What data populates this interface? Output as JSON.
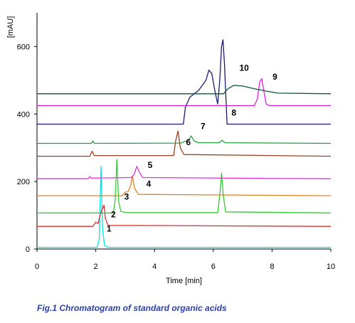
{
  "chart_data": {
    "type": "line",
    "xlabel": "Time [min]",
    "ylabel": "[mAU]",
    "xlim": [
      0,
      10
    ],
    "ylim": [
      0,
      700
    ],
    "xticks": [
      0,
      2,
      4,
      6,
      8,
      10
    ],
    "yticks": [
      0,
      200,
      400,
      600
    ],
    "grid": false,
    "series": [
      {
        "color": "#00e5e5",
        "baseline": 5,
        "points": [
          [
            0,
            5
          ],
          [
            2.05,
            5
          ],
          [
            2.12,
            30
          ],
          [
            2.18,
            245
          ],
          [
            2.23,
            60
          ],
          [
            2.3,
            10
          ],
          [
            2.45,
            5
          ],
          [
            10,
            5
          ]
        ]
      },
      {
        "color": "#dd3030",
        "baseline": 67,
        "points": [
          [
            0,
            67
          ],
          [
            1.9,
            67
          ],
          [
            2.0,
            80
          ],
          [
            2.08,
            75
          ],
          [
            2.18,
            110
          ],
          [
            2.28,
            130
          ],
          [
            2.33,
            90
          ],
          [
            2.42,
            70
          ],
          [
            10,
            67
          ]
        ]
      },
      {
        "color": "#33cc33",
        "baseline": 107,
        "points": [
          [
            0,
            107
          ],
          [
            2.6,
            107
          ],
          [
            2.66,
            145
          ],
          [
            2.72,
            265
          ],
          [
            2.78,
            140
          ],
          [
            2.85,
            112
          ],
          [
            3.0,
            108
          ],
          [
            6.15,
            108
          ],
          [
            6.22,
            160
          ],
          [
            6.28,
            225
          ],
          [
            6.34,
            160
          ],
          [
            6.42,
            110
          ],
          [
            10,
            107
          ]
        ]
      },
      {
        "color": "#e08020",
        "baseline": 158,
        "points": [
          [
            0,
            158
          ],
          [
            2.9,
            158
          ],
          [
            3.0,
            168
          ],
          [
            3.1,
            170
          ],
          [
            3.18,
            185
          ],
          [
            3.25,
            215
          ],
          [
            3.32,
            180
          ],
          [
            3.45,
            162
          ],
          [
            10,
            158
          ]
        ]
      },
      {
        "color": "#e030e0",
        "baseline": 208,
        "points": [
          [
            0,
            208
          ],
          [
            1.75,
            208
          ],
          [
            1.8,
            215
          ],
          [
            1.85,
            210
          ],
          [
            3.2,
            212
          ],
          [
            3.3,
            220
          ],
          [
            3.4,
            245
          ],
          [
            3.5,
            225
          ],
          [
            3.6,
            212
          ],
          [
            10,
            208
          ]
        ]
      },
      {
        "color": "#a04020",
        "baseline": 275,
        "points": [
          [
            0,
            275
          ],
          [
            1.8,
            275
          ],
          [
            1.88,
            290
          ],
          [
            1.95,
            277
          ],
          [
            4.65,
            277
          ],
          [
            4.72,
            320
          ],
          [
            4.8,
            350
          ],
          [
            4.88,
            300
          ],
          [
            5.0,
            280
          ],
          [
            10,
            275
          ]
        ]
      },
      {
        "color": "#20a040",
        "baseline": 313,
        "points": [
          [
            0,
            313
          ],
          [
            1.85,
            313
          ],
          [
            1.9,
            320
          ],
          [
            1.95,
            313
          ],
          [
            4.9,
            314
          ],
          [
            5.0,
            318
          ],
          [
            5.15,
            322
          ],
          [
            5.25,
            335
          ],
          [
            5.35,
            320
          ],
          [
            5.5,
            315
          ],
          [
            6.2,
            315
          ],
          [
            6.3,
            322
          ],
          [
            6.4,
            315
          ],
          [
            10,
            313
          ]
        ]
      },
      {
        "color": "#1a1a70",
        "baseline": 370,
        "points": [
          [
            0,
            370
          ],
          [
            4.98,
            370
          ],
          [
            5.05,
            420
          ],
          [
            5.2,
            450
          ],
          [
            5.5,
            470
          ],
          [
            5.75,
            500
          ],
          [
            5.85,
            530
          ],
          [
            5.95,
            520
          ],
          [
            6.05,
            470
          ],
          [
            6.15,
            430
          ],
          [
            6.22,
            500
          ],
          [
            6.28,
            600
          ],
          [
            6.33,
            620
          ],
          [
            6.38,
            550
          ],
          [
            6.43,
            445
          ],
          [
            6.47,
            370
          ],
          [
            10,
            370
          ]
        ]
      },
      {
        "color": "#e020e0",
        "baseline": 425,
        "points": [
          [
            0,
            425
          ],
          [
            7.4,
            425
          ],
          [
            7.5,
            445
          ],
          [
            7.58,
            495
          ],
          [
            7.65,
            505
          ],
          [
            7.72,
            470
          ],
          [
            7.8,
            430
          ],
          [
            7.9,
            425
          ],
          [
            10,
            425
          ]
        ]
      },
      {
        "color": "#0a5a3a",
        "baseline": 460,
        "points": [
          [
            0,
            460
          ],
          [
            6.35,
            460
          ],
          [
            6.5,
            475
          ],
          [
            6.7,
            485
          ],
          [
            7.0,
            483
          ],
          [
            7.4,
            475
          ],
          [
            7.8,
            468
          ],
          [
            8.2,
            462
          ],
          [
            10,
            460
          ]
        ]
      }
    ],
    "peak_labels": [
      {
        "text": "1",
        "x": 2.45,
        "y": 52
      },
      {
        "text": "2",
        "x": 2.6,
        "y": 94
      },
      {
        "text": "3",
        "x": 3.05,
        "y": 147
      },
      {
        "text": "4",
        "x": 3.8,
        "y": 185
      },
      {
        "text": "5",
        "x": 3.85,
        "y": 240
      },
      {
        "text": "6",
        "x": 5.15,
        "y": 308
      },
      {
        "text": "7",
        "x": 5.65,
        "y": 355
      },
      {
        "text": "8",
        "x": 6.7,
        "y": 395
      },
      {
        "text": "9",
        "x": 8.1,
        "y": 502
      },
      {
        "text": "10",
        "x": 7.05,
        "y": 528
      }
    ]
  },
  "caption": "Fig.1 Chromatogram of standard organic acids"
}
